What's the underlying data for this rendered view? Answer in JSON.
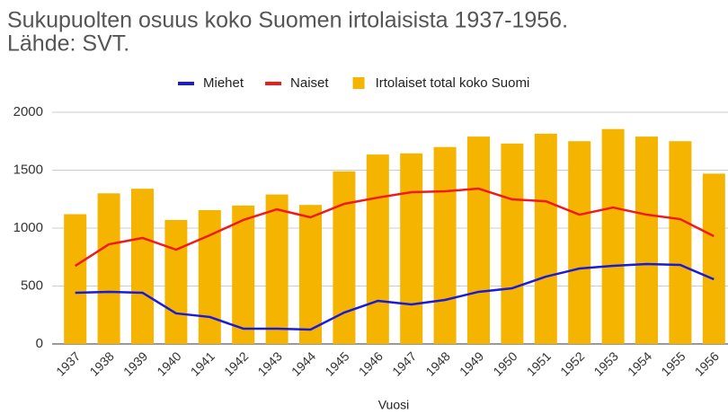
{
  "chart_data": {
    "type": "combo",
    "title": [
      "Sukupuolten osuus koko Suomen irtolaisista 1937-1956.",
      "Lähde: SVT."
    ],
    "x_label": "Vuosi",
    "categories": [
      "1937",
      "1938",
      "1939",
      "1940",
      "1941",
      "1942",
      "1943",
      "1944",
      "1945",
      "1946",
      "1947",
      "1948",
      "1949",
      "1950",
      "1951",
      "1952",
      "1953",
      "1954",
      "1955",
      "1956"
    ],
    "series": [
      {
        "name": "Miehet",
        "type": "line",
        "color": "#1a1adb",
        "values": [
          442,
          450,
          442,
          264,
          233,
          132,
          132,
          124,
          271,
          372,
          341,
          380,
          450,
          481,
          581,
          651,
          674,
          690,
          682,
          558
        ]
      },
      {
        "name": "Naiset",
        "type": "line",
        "color": "#f01a1a",
        "values": [
          674,
          860,
          915,
          814,
          938,
          1070,
          1162,
          1093,
          1209,
          1263,
          1310,
          1318,
          1341,
          1248,
          1232,
          1116,
          1178,
          1116,
          1077,
          930
        ]
      },
      {
        "name": "Irtolaiset total koko Suomi",
        "type": "bar",
        "color": "#f4b400",
        "values": [
          1120,
          1300,
          1340,
          1070,
          1155,
          1195,
          1290,
          1200,
          1490,
          1635,
          1645,
          1700,
          1790,
          1730,
          1815,
          1750,
          1855,
          1790,
          1750,
          1470
        ]
      }
    ],
    "ylim": [
      0,
      2000
    ],
    "yticks": [
      0,
      500,
      1000,
      1500,
      2000
    ],
    "grid": true,
    "legend": "top"
  }
}
